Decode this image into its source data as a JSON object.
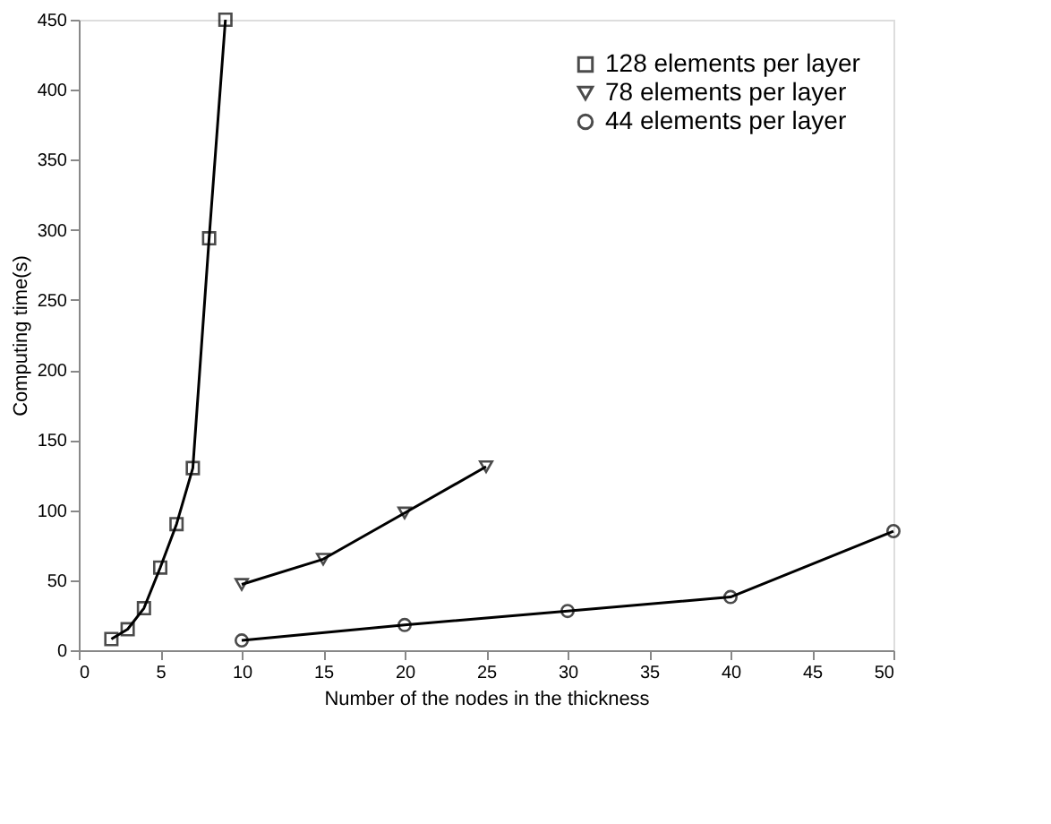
{
  "chart_data": {
    "type": "line",
    "xlabel": "Number of the nodes in the thickness",
    "ylabel": "Computing time(s)",
    "xlim": [
      0,
      50
    ],
    "xticks": [
      0,
      5,
      10,
      15,
      20,
      25,
      30,
      35,
      40,
      45,
      50
    ],
    "ylim": [
      0,
      450
    ],
    "yticks": [
      0,
      50,
      100,
      150,
      200,
      250,
      300,
      350,
      400,
      450
    ],
    "grid": false,
    "legend": "top right",
    "line_style": "solid",
    "series": [
      {
        "name": "128 elements per layer",
        "color": "#000000",
        "marker": "square",
        "x": [
          2,
          3,
          4,
          5,
          6,
          7,
          8,
          9
        ],
        "values": [
          8,
          15,
          30,
          59,
          90,
          130,
          294,
          450
        ]
      },
      {
        "name": "78 elements per layer",
        "color": "#000000",
        "marker": "triangle",
        "x": [
          10,
          15,
          20,
          25
        ],
        "values": [
          47,
          65,
          98,
          131
        ]
      },
      {
        "name": "44 elements per layer",
        "color": "#000000",
        "marker": "circle",
        "x": [
          10,
          20,
          30,
          40,
          50
        ],
        "values": [
          7,
          18,
          28,
          38,
          85
        ]
      }
    ]
  }
}
